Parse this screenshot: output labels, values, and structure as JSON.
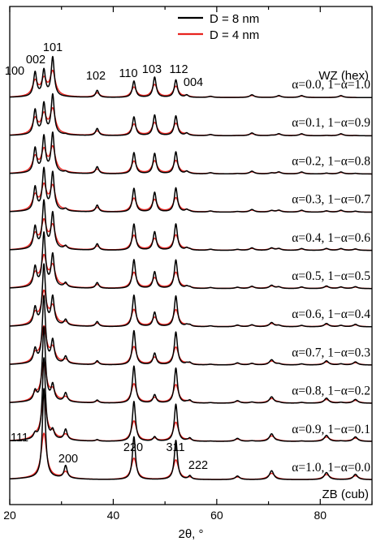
{
  "chart_data": {
    "type": "line",
    "title": "",
    "xlabel": "2θ, °",
    "ylabel": "",
    "xlim": [
      20,
      90
    ],
    "xticks": [
      20,
      40,
      60,
      80
    ],
    "xtick_labels": [
      "20",
      "40",
      "60",
      "80"
    ],
    "y_scale": "stacked offset traces, no y axis",
    "grid": false,
    "legend_position": "top-center",
    "series": [
      {
        "name": "D = 8 nm",
        "color": "#000000"
      },
      {
        "name": "D = 4 nm",
        "color": "#e8231f"
      }
    ],
    "traces": [
      {
        "alpha": 0.0,
        "label": "α=0.0, 1−α=1.0"
      },
      {
        "alpha": 0.1,
        "label": "α=0.1, 1−α=0.9"
      },
      {
        "alpha": 0.2,
        "label": "α=0.2, 1−α=0.8"
      },
      {
        "alpha": 0.3,
        "label": "α=0.3, 1−α=0.7"
      },
      {
        "alpha": 0.4,
        "label": "α=0.4, 1−α=0.6"
      },
      {
        "alpha": 0.5,
        "label": "α=0.5, 1−α=0.5"
      },
      {
        "alpha": 0.6,
        "label": "α=0.6, 1−α=0.4"
      },
      {
        "alpha": 0.7,
        "label": "α=0.7, 1−α=0.3"
      },
      {
        "alpha": 0.8,
        "label": "α=0.8, 1−α=0.2"
      },
      {
        "alpha": 0.9,
        "label": "α=0.9, 1−α=0.1"
      },
      {
        "alpha": 1.0,
        "label": "α=1.0, 1−α=0.0"
      }
    ],
    "wz_peaks": [
      {
        "label": "100",
        "x": 24.9,
        "h": 0.62
      },
      {
        "label": "002",
        "x": 26.6,
        "h": 0.66
      },
      {
        "label": "101",
        "x": 28.3,
        "h": 1.0
      },
      {
        "label": "102",
        "x": 36.9,
        "h": 0.18
      },
      {
        "label": "110",
        "x": 44.0,
        "h": 0.42
      },
      {
        "label": "103",
        "x": 48.0,
        "h": 0.52
      },
      {
        "label": "112",
        "x": 52.1,
        "h": 0.45
      },
      {
        "label": "004",
        "x": 54.2,
        "h": 0.06
      }
    ],
    "wz_minor_peaks": [
      {
        "x": 58.8,
        "h": 0.03
      },
      {
        "x": 66.8,
        "h": 0.07
      },
      {
        "x": 72.0,
        "h": 0.05
      },
      {
        "x": 76.4,
        "h": 0.05
      },
      {
        "x": 84.0,
        "h": 0.05
      }
    ],
    "zb_peaks": [
      {
        "label": "111",
        "x": 26.6,
        "h": 1.0
      },
      {
        "label": "200",
        "x": 30.8,
        "h": 0.14
      },
      {
        "label": "220",
        "x": 44.0,
        "h": 0.48
      },
      {
        "label": "311",
        "x": 52.1,
        "h": 0.44
      },
      {
        "label": "222",
        "x": 54.8,
        "h": 0.04
      }
    ],
    "zb_minor_peaks": [
      {
        "x": 64.0,
        "h": 0.04
      },
      {
        "x": 70.6,
        "h": 0.1
      },
      {
        "x": 81.2,
        "h": 0.08
      },
      {
        "x": 86.8,
        "h": 0.06
      }
    ],
    "phase_labels": {
      "top": "WZ (hex)",
      "bottom": "ZB (cub)"
    }
  }
}
